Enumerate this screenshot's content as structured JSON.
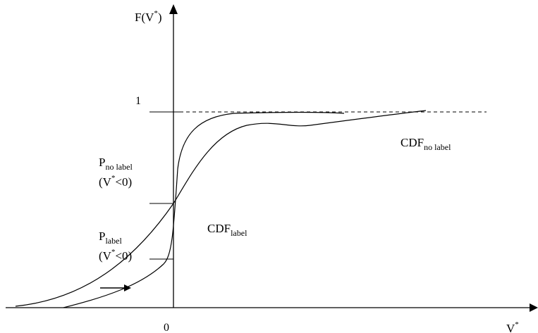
{
  "y_axis": {
    "main": "F(V",
    "sup": "*",
    "tail": ")"
  },
  "x_axis": {
    "main": "V",
    "sup": "*"
  },
  "origin_label": "0",
  "one_label": "1",
  "p_no_label": {
    "main": "P",
    "sub": "no label",
    "cond_main": "(V",
    "cond_sup": "*",
    "cond_tail": "<0)"
  },
  "p_label": {
    "main": "P",
    "sub": "label",
    "cond_main": "(V",
    "cond_sup": "*",
    "cond_tail": "<0)"
  },
  "cdf_label": {
    "main": "CDF",
    "sub": "label"
  },
  "cdf_no_label": {
    "main": "CDF",
    "sub": "no label"
  }
}
